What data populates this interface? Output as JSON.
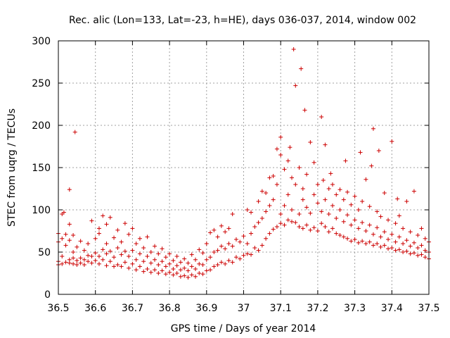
{
  "chart_data": {
    "type": "scatter",
    "title": "Rec. alic (Lon=133, Lat=-23, h=HE), days 036-037, 2014, window 002",
    "xlabel": "GPS time / Days of year 2014",
    "ylabel": "STEC from uqrg / TECUs",
    "xlim": [
      36.5,
      37.5
    ],
    "ylim": [
      0,
      300
    ],
    "xticks": [
      36.5,
      36.6,
      36.7,
      36.8,
      36.9,
      37,
      37.1,
      37.2,
      37.3,
      37.4,
      37.5
    ],
    "xtick_labels": [
      "36.5",
      "36.6",
      "36.7",
      "36.8",
      "36.9",
      "37",
      "37.1",
      "37.2",
      "37.3",
      "37.4",
      "37.5"
    ],
    "yticks": [
      0,
      50,
      100,
      150,
      200,
      250,
      300
    ],
    "ytick_labels": [
      "0",
      "50",
      "100",
      "150",
      "200",
      "250",
      "300"
    ],
    "grid": true,
    "marker": "plus",
    "color": "#cc0000",
    "points": [
      [
        36.5,
        35
      ],
      [
        36.5,
        39
      ],
      [
        36.5,
        62
      ],
      [
        36.5,
        72
      ],
      [
        36.51,
        36
      ],
      [
        36.51,
        45
      ],
      [
        36.51,
        66
      ],
      [
        36.51,
        95
      ],
      [
        36.515,
        97
      ],
      [
        36.52,
        38
      ],
      [
        36.52,
        58
      ],
      [
        36.52,
        71
      ],
      [
        36.53,
        37
      ],
      [
        36.53,
        41
      ],
      [
        36.53,
        64
      ],
      [
        36.53,
        83
      ],
      [
        36.53,
        124
      ],
      [
        36.54,
        36
      ],
      [
        36.54,
        43
      ],
      [
        36.54,
        50
      ],
      [
        36.54,
        70
      ],
      [
        36.545,
        192
      ],
      [
        36.55,
        35
      ],
      [
        36.55,
        40
      ],
      [
        36.55,
        56
      ],
      [
        36.56,
        37
      ],
      [
        36.56,
        43
      ],
      [
        36.56,
        63
      ],
      [
        36.57,
        35
      ],
      [
        36.57,
        41
      ],
      [
        36.57,
        52
      ],
      [
        36.58,
        39
      ],
      [
        36.58,
        46
      ],
      [
        36.58,
        60
      ],
      [
        36.59,
        37
      ],
      [
        36.59,
        45
      ],
      [
        36.59,
        87
      ],
      [
        36.6,
        40
      ],
      [
        36.6,
        49
      ],
      [
        36.6,
        66
      ],
      [
        36.61,
        36
      ],
      [
        36.61,
        45
      ],
      [
        36.61,
        72
      ],
      [
        36.61,
        78
      ],
      [
        36.62,
        41
      ],
      [
        36.62,
        53
      ],
      [
        36.62,
        93
      ],
      [
        36.63,
        34
      ],
      [
        36.63,
        48
      ],
      [
        36.63,
        60
      ],
      [
        36.63,
        83
      ],
      [
        36.64,
        39
      ],
      [
        36.64,
        51
      ],
      [
        36.64,
        91
      ],
      [
        36.65,
        33
      ],
      [
        36.65,
        44
      ],
      [
        36.65,
        67
      ],
      [
        36.66,
        35
      ],
      [
        36.66,
        55
      ],
      [
        36.66,
        76
      ],
      [
        36.67,
        33
      ],
      [
        36.67,
        47
      ],
      [
        36.67,
        62
      ],
      [
        36.68,
        38
      ],
      [
        36.68,
        51
      ],
      [
        36.68,
        84
      ],
      [
        36.69,
        31
      ],
      [
        36.69,
        45
      ],
      [
        36.69,
        71
      ],
      [
        36.7,
        36
      ],
      [
        36.7,
        52
      ],
      [
        36.7,
        78
      ],
      [
        36.71,
        29
      ],
      [
        36.71,
        41
      ],
      [
        36.71,
        60
      ],
      [
        36.72,
        33
      ],
      [
        36.72,
        48
      ],
      [
        36.72,
        66
      ],
      [
        36.73,
        27
      ],
      [
        36.73,
        39
      ],
      [
        36.73,
        55
      ],
      [
        36.74,
        30
      ],
      [
        36.74,
        45
      ],
      [
        36.74,
        68
      ],
      [
        36.75,
        26
      ],
      [
        36.75,
        37
      ],
      [
        36.75,
        50
      ],
      [
        36.76,
        29
      ],
      [
        36.76,
        41
      ],
      [
        36.76,
        57
      ],
      [
        36.77,
        25
      ],
      [
        36.77,
        35
      ],
      [
        36.77,
        48
      ],
      [
        36.78,
        28
      ],
      [
        36.78,
        39
      ],
      [
        36.78,
        54
      ],
      [
        36.79,
        24
      ],
      [
        36.79,
        33
      ],
      [
        36.79,
        44
      ],
      [
        36.8,
        26
      ],
      [
        36.8,
        36
      ],
      [
        36.8,
        48
      ],
      [
        36.81,
        23
      ],
      [
        36.81,
        30
      ],
      [
        36.81,
        40
      ],
      [
        36.82,
        25
      ],
      [
        36.82,
        34
      ],
      [
        36.82,
        45
      ],
      [
        36.83,
        21
      ],
      [
        36.83,
        29
      ],
      [
        36.83,
        38
      ],
      [
        36.84,
        22
      ],
      [
        36.84,
        31
      ],
      [
        36.84,
        42
      ],
      [
        36.85,
        20
      ],
      [
        36.85,
        28
      ],
      [
        36.85,
        37
      ],
      [
        36.86,
        23
      ],
      [
        36.86,
        33
      ],
      [
        36.86,
        47
      ],
      [
        36.87,
        21
      ],
      [
        36.87,
        30
      ],
      [
        36.87,
        41
      ],
      [
        36.88,
        25
      ],
      [
        36.88,
        36
      ],
      [
        36.88,
        53
      ],
      [
        36.89,
        24
      ],
      [
        36.89,
        35
      ],
      [
        36.89,
        49
      ],
      [
        36.9,
        28
      ],
      [
        36.9,
        41
      ],
      [
        36.9,
        60
      ],
      [
        36.91,
        29
      ],
      [
        36.91,
        44
      ],
      [
        36.91,
        73
      ],
      [
        36.92,
        33
      ],
      [
        36.92,
        50
      ],
      [
        36.92,
        76
      ],
      [
        36.93,
        35
      ],
      [
        36.93,
        52
      ],
      [
        36.93,
        68
      ],
      [
        36.94,
        38
      ],
      [
        36.94,
        57
      ],
      [
        36.94,
        81
      ],
      [
        36.95,
        36
      ],
      [
        36.95,
        54
      ],
      [
        36.95,
        74
      ],
      [
        36.96,
        40
      ],
      [
        36.96,
        60
      ],
      [
        36.96,
        78
      ],
      [
        36.97,
        38
      ],
      [
        36.97,
        57
      ],
      [
        36.97,
        95
      ],
      [
        36.98,
        44
      ],
      [
        36.98,
        65
      ],
      [
        36.99,
        42
      ],
      [
        36.99,
        62
      ],
      [
        37,
        46
      ],
      [
        37,
        69
      ],
      [
        37.01,
        48
      ],
      [
        37.01,
        60
      ],
      [
        37.01,
        100
      ],
      [
        37.02,
        47
      ],
      [
        37.02,
        72
      ],
      [
        37.02,
        97
      ],
      [
        37.03,
        55
      ],
      [
        37.03,
        80
      ],
      [
        37.04,
        52
      ],
      [
        37.04,
        85
      ],
      [
        37.04,
        110
      ],
      [
        37.05,
        58
      ],
      [
        37.05,
        90
      ],
      [
        37.05,
        122
      ],
      [
        37.06,
        66
      ],
      [
        37.06,
        98
      ],
      [
        37.06,
        120
      ],
      [
        37.07,
        72
      ],
      [
        37.07,
        105
      ],
      [
        37.07,
        138
      ],
      [
        37.08,
        77
      ],
      [
        37.08,
        112
      ],
      [
        37.08,
        140
      ],
      [
        37.09,
        80
      ],
      [
        37.09,
        130
      ],
      [
        37.09,
        172
      ],
      [
        37.1,
        84
      ],
      [
        37.1,
        95
      ],
      [
        37.1,
        165
      ],
      [
        37.1,
        186
      ],
      [
        37.11,
        82
      ],
      [
        37.11,
        105
      ],
      [
        37.11,
        148
      ],
      [
        37.12,
        88
      ],
      [
        37.12,
        118
      ],
      [
        37.12,
        158
      ],
      [
        37.125,
        174
      ],
      [
        37.13,
        86
      ],
      [
        37.13,
        100
      ],
      [
        37.13,
        138
      ],
      [
        37.135,
        290
      ],
      [
        37.14,
        85
      ],
      [
        37.14,
        130
      ],
      [
        37.14,
        247
      ],
      [
        37.15,
        80
      ],
      [
        37.15,
        95
      ],
      [
        37.15,
        150
      ],
      [
        37.155,
        267
      ],
      [
        37.16,
        78
      ],
      [
        37.16,
        112
      ],
      [
        37.16,
        125
      ],
      [
        37.165,
        218
      ],
      [
        37.17,
        82
      ],
      [
        37.17,
        103
      ],
      [
        37.17,
        142
      ],
      [
        37.18,
        76
      ],
      [
        37.18,
        96
      ],
      [
        37.18,
        180
      ],
      [
        37.19,
        79
      ],
      [
        37.19,
        118
      ],
      [
        37.19,
        156
      ],
      [
        37.2,
        75
      ],
      [
        37.2,
        108
      ],
      [
        37.2,
        130
      ],
      [
        37.21,
        84
      ],
      [
        37.21,
        98
      ],
      [
        37.21,
        210
      ],
      [
        37.215,
        135
      ],
      [
        37.22,
        80
      ],
      [
        37.22,
        112
      ],
      [
        37.22,
        177
      ],
      [
        37.23,
        74
      ],
      [
        37.23,
        95
      ],
      [
        37.23,
        125
      ],
      [
        37.235,
        143
      ],
      [
        37.24,
        78
      ],
      [
        37.24,
        105
      ],
      [
        37.24,
        130
      ],
      [
        37.25,
        72
      ],
      [
        37.25,
        90
      ],
      [
        37.25,
        118
      ],
      [
        37.26,
        70
      ],
      [
        37.26,
        100
      ],
      [
        37.26,
        124
      ],
      [
        37.27,
        68
      ],
      [
        37.27,
        86
      ],
      [
        37.27,
        112
      ],
      [
        37.275,
        158
      ],
      [
        37.28,
        66
      ],
      [
        37.28,
        94
      ],
      [
        37.28,
        121
      ],
      [
        37.29,
        63
      ],
      [
        37.29,
        82
      ],
      [
        37.29,
        106
      ],
      [
        37.3,
        65
      ],
      [
        37.3,
        88
      ],
      [
        37.3,
        116
      ],
      [
        37.31,
        61
      ],
      [
        37.31,
        78
      ],
      [
        37.31,
        100
      ],
      [
        37.315,
        168
      ],
      [
        37.32,
        63
      ],
      [
        37.32,
        85
      ],
      [
        37.32,
        110
      ],
      [
        37.33,
        60
      ],
      [
        37.33,
        75
      ],
      [
        37.33,
        136
      ],
      [
        37.34,
        62
      ],
      [
        37.34,
        82
      ],
      [
        37.34,
        104
      ],
      [
        37.345,
        152
      ],
      [
        37.35,
        58
      ],
      [
        37.35,
        71
      ],
      [
        37.35,
        196
      ],
      [
        37.36,
        60
      ],
      [
        37.36,
        79
      ],
      [
        37.36,
        98
      ],
      [
        37.365,
        170
      ],
      [
        37.37,
        56
      ],
      [
        37.37,
        68
      ],
      [
        37.37,
        92
      ],
      [
        37.38,
        58
      ],
      [
        37.38,
        74
      ],
      [
        37.38,
        120
      ],
      [
        37.39,
        54
      ],
      [
        37.39,
        65
      ],
      [
        37.39,
        88
      ],
      [
        37.4,
        55
      ],
      [
        37.4,
        71
      ],
      [
        37.4,
        181
      ],
      [
        37.41,
        52
      ],
      [
        37.41,
        62
      ],
      [
        37.41,
        84
      ],
      [
        37.415,
        113
      ],
      [
        37.42,
        53
      ],
      [
        37.42,
        68
      ],
      [
        37.42,
        93
      ],
      [
        37.43,
        50
      ],
      [
        37.43,
        60
      ],
      [
        37.43,
        78
      ],
      [
        37.44,
        51
      ],
      [
        37.44,
        64
      ],
      [
        37.44,
        110
      ],
      [
        37.45,
        48
      ],
      [
        37.45,
        57
      ],
      [
        37.45,
        74
      ],
      [
        37.46,
        49
      ],
      [
        37.46,
        61
      ],
      [
        37.46,
        122
      ],
      [
        37.47,
        46
      ],
      [
        37.47,
        55
      ],
      [
        37.47,
        70
      ],
      [
        37.48,
        47
      ],
      [
        37.48,
        58
      ],
      [
        37.48,
        78
      ],
      [
        37.49,
        44
      ],
      [
        37.49,
        52
      ],
      [
        37.49,
        66
      ],
      [
        37.5,
        42
      ],
      [
        37.5,
        50
      ],
      [
        37.5,
        62
      ]
    ]
  }
}
